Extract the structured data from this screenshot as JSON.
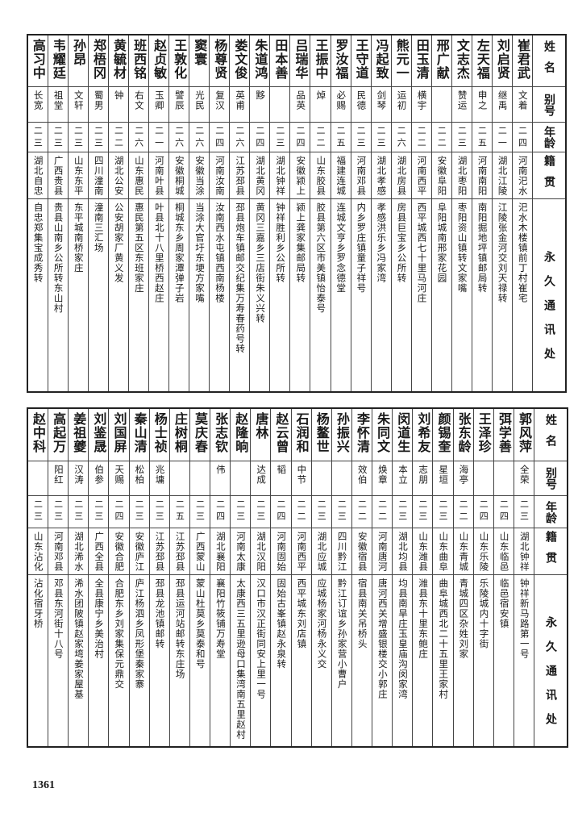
{
  "headers": {
    "name": "姓名",
    "alias": "别号",
    "age": "年龄",
    "native_place": "籍贯",
    "address": "永久通讯处"
  },
  "top": {
    "rows": [
      {
        "name": "崔君武",
        "alias": "文着",
        "age": "二四",
        "native_place": "河南汜水",
        "address": "汜水木楼镇前丁村崔宅"
      },
      {
        "name": "刘启贤",
        "alias": "继禹",
        "age": "二一",
        "native_place": "湖北江陵",
        "address": "江陵张金河交刘天禄转"
      },
      {
        "name": "左天福",
        "alias": "申之",
        "age": "二五",
        "native_place": "河南南阳",
        "address": "南阳掘地坪镇邮局转"
      },
      {
        "name": "文志杰",
        "alias": "赞运",
        "age": "二三",
        "native_place": "湖北枣阳",
        "address": "枣阳资山镇转文家嘴"
      },
      {
        "name": "邢广献",
        "alias": "",
        "age": "二二",
        "native_place": "安徽阜阳",
        "address": "阜阳城南邢家花园"
      },
      {
        "name": "田玉清",
        "alias": "横宇",
        "age": "二二",
        "native_place": "河南西平",
        "address": "西平城西七十里马河庄"
      },
      {
        "name": "熊元一",
        "alias": "运初",
        "age": "二六",
        "native_place": "湖北房县",
        "address": "房县巨宝乡公所转"
      },
      {
        "name": "冯起致",
        "alias": "剑琴",
        "age": "二三",
        "native_place": "湖北孝感",
        "address": "孝感洪乐乡冯家湾"
      },
      {
        "name": "王守道",
        "alias": "民德",
        "age": "二三",
        "native_place": "河南邓县",
        "address": "内乡罗庄镇童子祥号"
      },
      {
        "name": "罗汝福",
        "alias": "必赐",
        "age": "二五",
        "native_place": "福建连城",
        "address": "连城文亨乡罗念德堂"
      },
      {
        "name": "王振中",
        "alias": "焯",
        "age": "二二",
        "native_place": "山东胶县",
        "address": "胶县第六区市美镇怡泰号"
      },
      {
        "name": "吕瑞华",
        "alias": "品英",
        "age": "二四",
        "native_place": "安徽颍上",
        "address": "颍上龚家集邮局转"
      },
      {
        "name": "田本善",
        "alias": "",
        "age": "二三",
        "native_place": "湖北钟祥",
        "address": "钟祥胜利乡公所转"
      },
      {
        "name": "朱道鸿",
        "alias": "黟",
        "age": "二四",
        "native_place": "湖北黄冈",
        "address": "黄冈三嘉乡三店街朱义兴转"
      },
      {
        "name": "娄文俊",
        "alias": "英甫",
        "age": "二六",
        "native_place": "江苏邳县",
        "address": "邳县炮车镇邮交纪集万寿春药号转"
      },
      {
        "name": "杨尊贤",
        "alias": "复汉",
        "age": "二四",
        "native_place": "河南汝南",
        "address": "汝南西水屯镇西南杨楼"
      },
      {
        "name": "窦寰",
        "alias": "光民",
        "age": "二六",
        "native_place": "安徽当涂",
        "address": "当涂大官圩东埂方家嘴"
      },
      {
        "name": "王敦化",
        "alias": "譬辰",
        "age": "二六",
        "native_place": "安徽桐城",
        "address": "桐城东乡周家潭弹子岩"
      },
      {
        "name": "赵贞敏",
        "alias": "玉卿",
        "age": "二一",
        "native_place": "河南叶县",
        "address": "叶县北十八里桥西赵庄"
      },
      {
        "name": "班西铭",
        "alias": "右文",
        "age": "二六",
        "native_place": "山东惠民",
        "address": "惠民第五区东班家庄"
      },
      {
        "name": "黄毓材",
        "alias": "钟",
        "age": "二二",
        "native_place": "湖北公安",
        "address": "公安胡家厂黄义发"
      },
      {
        "name": "郑梧冈",
        "alias": "蜀男",
        "age": "二三",
        "native_place": "四川潼南",
        "address": "潼南三汇场"
      },
      {
        "name": "孙昂",
        "alias": "文轩",
        "age": "二三",
        "native_place": "山东东平",
        "address": "东平城南桥家庄"
      },
      {
        "name": "韦耀廷",
        "alias": "祖堂",
        "age": "二三",
        "native_place": "广西贵县",
        "address": "贵县山南乡公所转东山村"
      },
      {
        "name": "高习中",
        "alias": "长宽",
        "age": "二三",
        "native_place": "湖北自忠",
        "address": "自忠郑集宝成秀转"
      }
    ]
  },
  "bottom": {
    "rows": [
      {
        "name": "郭风萍",
        "alias": "全荣",
        "age": "二三",
        "native_place": "湖北钟祥",
        "address": "钟祥新马路第一号"
      },
      {
        "name": "弭学善",
        "alias": "",
        "age": "二四",
        "native_place": "山东临邑",
        "address": "临邑宿安镇"
      },
      {
        "name": "王泽珍",
        "alias": "",
        "age": "二四",
        "native_place": "山东乐陵",
        "address": "乐陵城内十字街"
      },
      {
        "name": "张东龄",
        "alias": "海亭",
        "age": "二二",
        "native_place": "山东青城",
        "address": "青城四区杂姓刘家"
      },
      {
        "name": "颜锡奎",
        "alias": "星垣",
        "age": "二三",
        "native_place": "山东曲阜",
        "address": "曲阜城西北二十五里王家村"
      },
      {
        "name": "刘希友",
        "alias": "志朋",
        "age": "二三",
        "native_place": "山东潍县",
        "address": "潍县东十里东鲍庄"
      },
      {
        "name": "闵道生",
        "alias": "本立",
        "age": "二三",
        "native_place": "湖北均县",
        "address": "均县南旱庄玉皇庙沟闵家湾"
      },
      {
        "name": "朱同文",
        "alias": "焕章",
        "age": "二二",
        "native_place": "河南唐河",
        "address": "唐河西关增盛银楼交小郭庄"
      },
      {
        "name": "李怀清",
        "alias": "效伯",
        "age": "二二",
        "native_place": "安徽宿县",
        "address": "宿县南关吊桥头"
      },
      {
        "name": "孙振兴",
        "alias": "",
        "age": "二三",
        "native_place": "四川黔江",
        "address": "黔江订谊乡孙家营小曹户"
      },
      {
        "name": "杨鳌世",
        "alias": "",
        "age": "二三",
        "native_place": "湖北应城",
        "address": "应城杨家河杨永义交"
      },
      {
        "name": "石润和",
        "alias": "中节",
        "age": "二二",
        "native_place": "河南西平",
        "address": "西平城东刘店镇"
      },
      {
        "name": "赵云曾",
        "alias": "韬",
        "age": "二四",
        "native_place": "河南固始",
        "address": "固始古峯镇赵永泉转"
      },
      {
        "name": "唐林",
        "alias": "达成",
        "age": "二三",
        "native_place": "湖北汉阳",
        "address": "汉口市汉正街同安上里一号"
      },
      {
        "name": "赵隆晌",
        "alias": "",
        "age": "二三",
        "native_place": "河南太康",
        "address": "太康西三五里逊母口集湾南五里赵村"
      },
      {
        "name": "张志钦",
        "alias": "伟",
        "age": "二四",
        "native_place": "湖北襄阳",
        "address": "襄阳竹筱铺万寿堂"
      },
      {
        "name": "莫庆春",
        "alias": "",
        "age": "二三",
        "native_place": "广西蒙山",
        "address": "蒙山杜莫乡莫泰和号"
      },
      {
        "name": "庄树桐",
        "alias": "",
        "age": "二五",
        "native_place": "江苏邳县",
        "address": "邳县运河站邮转东庄场"
      },
      {
        "name": "杨士祯",
        "alias": "兆墉",
        "age": "二三",
        "native_place": "江苏邳县",
        "address": "邳县龙池镇邮转"
      },
      {
        "name": "秦山清",
        "alias": "松柏",
        "age": "二三",
        "native_place": "安徽庐江",
        "address": "庐江杨泗乡凤形堡秦家寨"
      },
      {
        "name": "刘国屏",
        "alias": "天赐",
        "age": "二四",
        "native_place": "安徽合肥",
        "address": "合肥东乡刘家集保元鼎交"
      },
      {
        "name": "刘鉴晟",
        "alias": "伯参",
        "age": "二三",
        "native_place": "广西全县",
        "address": "全县康宁乡美治村"
      },
      {
        "name": "姜祖夔",
        "alias": "汉涛",
        "age": "二三",
        "native_place": "湖北浠水",
        "address": "浠水团陂镇赵家塆姜家屋基"
      },
      {
        "name": "高起万",
        "alias": "阳红",
        "age": "二三",
        "native_place": "河南邓县",
        "address": "邓县东河街十八号"
      },
      {
        "name": "赵中科",
        "alias": "",
        "age": "二三",
        "native_place": "山东沾化",
        "address": "沾化宿牙桥"
      }
    ]
  },
  "page_number": "1361"
}
